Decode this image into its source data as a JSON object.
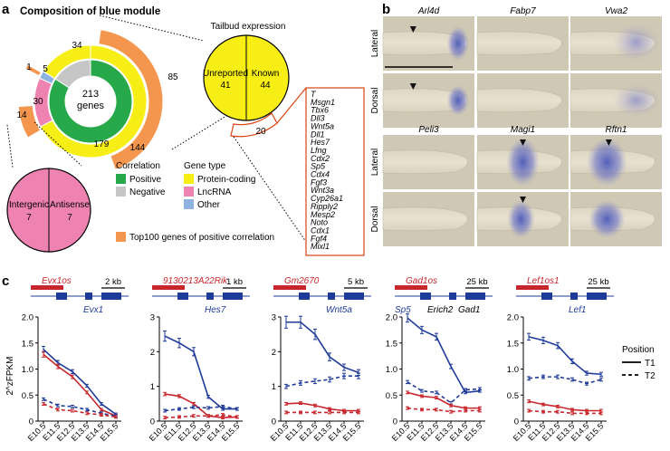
{
  "panel_a": {
    "letter": "a",
    "title": "Composition of blue module",
    "center_value": "213",
    "center_unit": "genes",
    "correlation_ring": [
      {
        "label": "179",
        "value": 179,
        "color": "#27a84a"
      },
      {
        "label": "34",
        "value": 34,
        "color": "#c6c6c6"
      }
    ],
    "type_ring": [
      {
        "label": "144",
        "value": 144,
        "color": "#f7ee16"
      },
      {
        "label": "30",
        "value": 30,
        "color": "#ee82b0"
      },
      {
        "label": "5",
        "value": 5,
        "color": "#8fb3e0"
      }
    ],
    "top100_ring": [
      {
        "label": "85",
        "value": 85,
        "color": "#f5964f"
      },
      {
        "label": "1",
        "value": 1,
        "color": "#f5964f"
      },
      {
        "label": "14",
        "value": 14,
        "color": "#f5964f"
      }
    ],
    "tailbud": {
      "title": "Tailbud expression",
      "unreported_label": "Unreported",
      "unreported_value": "41",
      "known_label": "Known",
      "known_value": "44",
      "arc_value": "20",
      "genes": [
        "T",
        "Msgn1",
        "Tbx6",
        "Dll3",
        "Wnt5a",
        "Dll1",
        "Hes7",
        "Lfng",
        "Cdx2",
        "Sp5",
        "Cdx4",
        "Fgf3",
        "Wnt3a",
        "Cyp26a1",
        "Ripply2",
        "Mesp2",
        "Noto",
        "Cdx1",
        "Fgf4",
        "Mixl1"
      ]
    },
    "lncrna_pie": {
      "left_label": "Intergenic",
      "left_value": "7",
      "right_label": "Antisense",
      "right_value": "7"
    },
    "legend": {
      "correlation_title": "Correlation",
      "positive": "Positive",
      "negative": "Negative",
      "gene_type_title": "Gene type",
      "protein": "Protein-coding",
      "lncrna": "LncRNA",
      "other": "Other",
      "top100": "Top100 genes of positive correlation",
      "colors": {
        "positive": "#27a84a",
        "negative": "#c6c6c6",
        "protein": "#f7ee16",
        "lncrna": "#ee82b0",
        "other": "#8fb3e0",
        "top100": "#f5964f"
      }
    }
  },
  "panel_b": {
    "letter": "b",
    "row_labels": [
      "Lateral",
      "Dorsal",
      "Lateral",
      "Dorsal"
    ],
    "gene_rows": [
      [
        "Arl4d",
        "Fabp7",
        "Vwa2"
      ],
      [
        "Peli3",
        "Magi1",
        "Rftn1"
      ]
    ]
  },
  "panel_c": {
    "letter": "c",
    "y_axis_label": "2^zFPKM",
    "legend_title": "Position",
    "legend_t1": "T1",
    "legend_t2": "T2",
    "x_categories": [
      "E10.5",
      "E11.5",
      "E12.5",
      "E13.5",
      "E14.5",
      "E15.5"
    ],
    "plots": [
      {
        "lnc_name": "Evx1os",
        "coding_name": "Evx1",
        "scale_label": "2 kb",
        "ylim": [
          0,
          2.0
        ],
        "yticks": [
          "0",
          "0.5",
          "1.0",
          "1.5",
          "2.0"
        ],
        "ytick_values": [
          0,
          0.5,
          1.0,
          1.5,
          2.0
        ],
        "series": [
          {
            "gene": "coding",
            "position": "T1",
            "values": [
              1.38,
              1.12,
              0.95,
              0.68,
              0.33,
              0.13
            ]
          },
          {
            "gene": "lnc",
            "position": "T1",
            "values": [
              1.28,
              1.05,
              0.85,
              0.55,
              0.22,
              0.1
            ]
          },
          {
            "gene": "coding",
            "position": "T2",
            "values": [
              0.42,
              0.3,
              0.28,
              0.22,
              0.15,
              0.1
            ]
          },
          {
            "gene": "lnc",
            "position": "T2",
            "values": [
              0.33,
              0.22,
              0.2,
              0.15,
              0.12,
              0.08
            ]
          }
        ]
      },
      {
        "lnc_name": "9130213A22Rik",
        "coding_name": "Hes7",
        "scale_label": "1 kb",
        "ylim": [
          0,
          3
        ],
        "yticks": [
          "0",
          "1",
          "2",
          "3"
        ],
        "ytick_values": [
          0,
          1,
          2,
          3
        ],
        "series": [
          {
            "gene": "coding",
            "position": "T1",
            "values": [
              2.45,
              2.25,
              2.0,
              0.7,
              0.35,
              0.35
            ]
          },
          {
            "gene": "lnc",
            "position": "T1",
            "values": [
              0.78,
              0.72,
              0.5,
              0.15,
              0.1,
              0.12
            ]
          },
          {
            "gene": "coding",
            "position": "T2",
            "values": [
              0.3,
              0.35,
              0.4,
              0.38,
              0.42,
              0.35
            ]
          },
          {
            "gene": "lnc",
            "position": "T2",
            "values": [
              0.1,
              0.12,
              0.15,
              0.15,
              0.18,
              0.12
            ]
          }
        ]
      },
      {
        "lnc_name": "Gm2670",
        "coding_name": "Wnt5a",
        "scale_label": "5 kb",
        "ylim": [
          0,
          3
        ],
        "yticks": [
          "0",
          "1",
          "2",
          "3"
        ],
        "ytick_values": [
          0,
          1,
          2,
          3
        ],
        "series": [
          {
            "gene": "coding",
            "position": "T1",
            "values": [
              2.85,
              2.85,
              2.5,
              1.85,
              1.55,
              1.4
            ]
          },
          {
            "gene": "coding",
            "position": "T2",
            "values": [
              1.0,
              1.1,
              1.15,
              1.2,
              1.3,
              1.3
            ]
          },
          {
            "gene": "lnc",
            "position": "T1",
            "values": [
              0.5,
              0.52,
              0.45,
              0.35,
              0.3,
              0.3
            ]
          },
          {
            "gene": "lnc",
            "position": "T2",
            "values": [
              0.25,
              0.25,
              0.25,
              0.25,
              0.25,
              0.25
            ]
          }
        ]
      },
      {
        "lnc_name": "Gad1os",
        "coding_name": "Sp5",
        "extra_genes": [
          "Erich2",
          "Gad1"
        ],
        "scale_label": "25 kb",
        "ylim": [
          0,
          2.0
        ],
        "yticks": [
          "0",
          "0.5",
          "1.0",
          "1.5",
          "2.0"
        ],
        "ytick_values": [
          0,
          0.5,
          1.0,
          1.5,
          2.0
        ],
        "series": [
          {
            "gene": "coding",
            "position": "T1",
            "values": [
              1.98,
              1.75,
              1.62,
              1.05,
              0.55,
              0.58
            ]
          },
          {
            "gene": "coding",
            "position": "T2",
            "values": [
              0.75,
              0.58,
              0.55,
              0.35,
              0.6,
              0.62
            ]
          },
          {
            "gene": "lnc",
            "position": "T1",
            "values": [
              0.55,
              0.48,
              0.45,
              0.3,
              0.25,
              0.25
            ]
          },
          {
            "gene": "lnc",
            "position": "T2",
            "values": [
              0.25,
              0.22,
              0.22,
              0.18,
              0.2,
              0.2
            ]
          }
        ]
      },
      {
        "lnc_name": "Lef1os1",
        "coding_name": "Lef1",
        "scale_label": "25 kb",
        "ylim": [
          0,
          2.0
        ],
        "yticks": [
          "0",
          "0.5",
          "1.0",
          "1.5",
          "2.0"
        ],
        "ytick_values": [
          0,
          0.5,
          1.0,
          1.5,
          2.0
        ],
        "series": [
          {
            "gene": "coding",
            "position": "T1",
            "values": [
              1.62,
              1.55,
              1.45,
              1.15,
              0.92,
              0.9
            ]
          },
          {
            "gene": "coding",
            "position": "T2",
            "values": [
              0.82,
              0.85,
              0.85,
              0.8,
              0.72,
              0.8
            ]
          },
          {
            "gene": "lnc",
            "position": "T1",
            "values": [
              0.38,
              0.32,
              0.28,
              0.22,
              0.2,
              0.2
            ]
          },
          {
            "gene": "lnc",
            "position": "T2",
            "values": [
              0.2,
              0.18,
              0.18,
              0.15,
              0.15,
              0.15
            ]
          }
        ]
      }
    ],
    "colors": {
      "coding": "#1f3b99",
      "lnc": "#c7262c"
    }
  }
}
